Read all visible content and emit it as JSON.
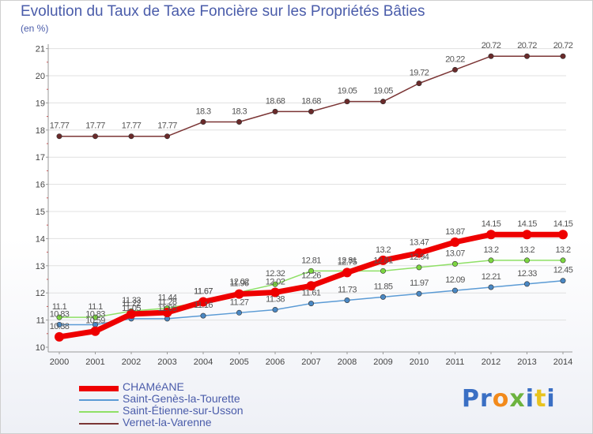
{
  "page": {
    "title": "Evolution du Taux de Taxe Foncière sur les Propriétés Bâties",
    "subtitle": "(en %)",
    "brand_letters": [
      "P",
      "r",
      "o",
      "x",
      "i",
      "t",
      "i"
    ]
  },
  "colors": {
    "title": "#4a5caa",
    "axis": "#999999",
    "grid": "#e0e0e0",
    "brand": [
      "#3a6fc4",
      "#3a6fc4",
      "#f28a1c",
      "#6db33f",
      "#3a6fc4",
      "#e8c31e",
      "#3a6fc4"
    ]
  },
  "chart_data": {
    "type": "line",
    "x": [
      2000,
      2001,
      2002,
      2003,
      2004,
      2005,
      2006,
      2007,
      2008,
      2009,
      2010,
      2011,
      2012,
      2013,
      2014
    ],
    "ylim": [
      10,
      21
    ],
    "yticks": [
      10,
      11,
      12,
      13,
      14,
      15,
      16,
      17,
      18,
      19,
      20,
      21
    ],
    "grid": "horizontal",
    "legend_position": "bottom-left",
    "series": [
      {
        "name": "CHAMéANE",
        "color": "#ee0000",
        "marker": "#ee0000",
        "width": 7,
        "values": [
          10.38,
          10.59,
          11.22,
          11.28,
          11.67,
          11.96,
          12.02,
          12.26,
          12.75,
          13.2,
          13.47,
          13.87,
          14.15,
          14.15,
          14.15
        ],
        "labels": [
          "10.38",
          "10.59",
          "11.22",
          "11.28",
          "11.67",
          "11.96",
          "12.02",
          "12.26",
          "12.75",
          "13.2",
          "13.47",
          "13.87",
          "14.15",
          "14.15",
          "14.15"
        ]
      },
      {
        "name": "Saint-Genès-la-Tourette",
        "color": "#5b9bd5",
        "marker": "#4a88c4",
        "width": 1.5,
        "values": [
          10.83,
          10.83,
          11.05,
          11.05,
          11.16,
          11.27,
          11.38,
          11.61,
          11.73,
          11.85,
          11.97,
          12.09,
          12.21,
          12.33,
          12.45
        ],
        "labels": [
          "10.83",
          "10.83",
          "11.05",
          "11.05",
          "11.16",
          "11.27",
          "11.38",
          "11.61",
          "11.73",
          "11.85",
          "11.97",
          "12.09",
          "12.21",
          "12.33",
          "12.45"
        ]
      },
      {
        "name": "Saint-Étienne-sur-Usson",
        "color": "#8fe066",
        "marker": "#7cd640",
        "width": 1.5,
        "values": [
          11.1,
          11.1,
          11.33,
          11.44,
          11.67,
          12.02,
          12.32,
          12.81,
          12.81,
          12.81,
          12.94,
          13.07,
          13.2,
          13.2,
          13.2
        ],
        "labels": [
          "11.1",
          "11.1",
          "11.33",
          "11.44",
          "11.67",
          "12.02",
          "12.32",
          "12.81",
          "12.81",
          "12.81",
          "12.94",
          "13.07",
          "13.2",
          "13.2",
          "13.2"
        ]
      },
      {
        "name": "Vernet-la-Varenne",
        "color": "#7b3535",
        "marker": "#6a2a2a",
        "width": 1.5,
        "values": [
          17.77,
          17.77,
          17.77,
          17.77,
          18.3,
          18.3,
          18.68,
          18.68,
          19.05,
          19.05,
          19.72,
          20.22,
          20.72,
          20.72,
          20.72
        ],
        "labels": [
          "17.77",
          "17.77",
          "17.77",
          "17.77",
          "18.3",
          "18.3",
          "18.68",
          "18.68",
          "19.05",
          "19.05",
          "19.72",
          "20.22",
          "20.72",
          "20.72",
          "20.72"
        ]
      }
    ]
  }
}
